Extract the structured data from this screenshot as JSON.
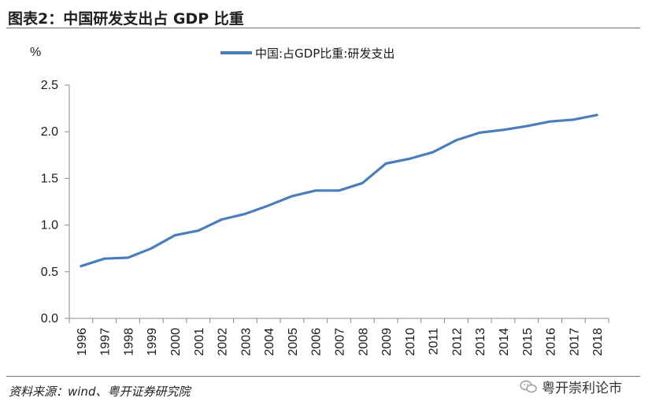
{
  "header": {
    "title": "图表2：中国研发支出占 GDP 比重"
  },
  "footer": {
    "source": "资料来源：wind、粤开证券研究院",
    "watermark": "粤开崇利论市"
  },
  "chart_data": {
    "type": "line",
    "title": "图表2：中国研发支出占 GDP 比重",
    "ylabel": "%",
    "xlabel": "",
    "ylim": [
      0,
      2.5
    ],
    "yticks": [
      "0.0",
      "0.5",
      "1.0",
      "1.5",
      "2.0",
      "2.5"
    ],
    "legend_position": "top",
    "grid": false,
    "categories": [
      "1996",
      "1997",
      "1998",
      "1999",
      "2000",
      "2001",
      "2002",
      "2003",
      "2004",
      "2005",
      "2006",
      "2007",
      "2008",
      "2009",
      "2010",
      "2011",
      "2012",
      "2013",
      "2014",
      "2015",
      "2016",
      "2017",
      "2018"
    ],
    "series": [
      {
        "name": "中国:占GDP比重:研发支出",
        "color": "#4a7ebb",
        "values": [
          0.56,
          0.64,
          0.65,
          0.75,
          0.89,
          0.94,
          1.06,
          1.12,
          1.21,
          1.31,
          1.37,
          1.37,
          1.45,
          1.66,
          1.71,
          1.78,
          1.91,
          1.99,
          2.02,
          2.06,
          2.11,
          2.13,
          2.18
        ]
      }
    ]
  }
}
